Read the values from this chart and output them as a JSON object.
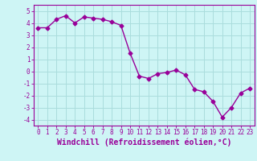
{
  "x": [
    0,
    1,
    2,
    3,
    4,
    5,
    6,
    7,
    8,
    9,
    10,
    11,
    12,
    13,
    14,
    15,
    16,
    17,
    18,
    19,
    20,
    21,
    22,
    23
  ],
  "y": [
    3.6,
    3.6,
    4.3,
    4.6,
    4.0,
    4.5,
    4.4,
    4.3,
    4.1,
    3.8,
    1.5,
    -0.4,
    -0.6,
    -0.2,
    -0.1,
    0.1,
    -0.3,
    -1.5,
    -1.7,
    -2.5,
    -3.8,
    -3.0,
    -1.8,
    -1.4
  ],
  "line_color": "#990099",
  "marker": "D",
  "markersize": 2.5,
  "linewidth": 1.0,
  "xlabel": "Windchill (Refroidissement éolien,°C)",
  "xlim": [
    -0.5,
    23.5
  ],
  "ylim": [
    -4.5,
    5.5
  ],
  "yticks": [
    -4,
    -3,
    -2,
    -1,
    0,
    1,
    2,
    3,
    4,
    5
  ],
  "xticks": [
    0,
    1,
    2,
    3,
    4,
    5,
    6,
    7,
    8,
    9,
    10,
    11,
    12,
    13,
    14,
    15,
    16,
    17,
    18,
    19,
    20,
    21,
    22,
    23
  ],
  "bg_color": "#cef5f5",
  "grid_color": "#aadddd",
  "line_label_color": "#990099",
  "tick_fontsize": 5.5,
  "xlabel_fontsize": 7.0
}
